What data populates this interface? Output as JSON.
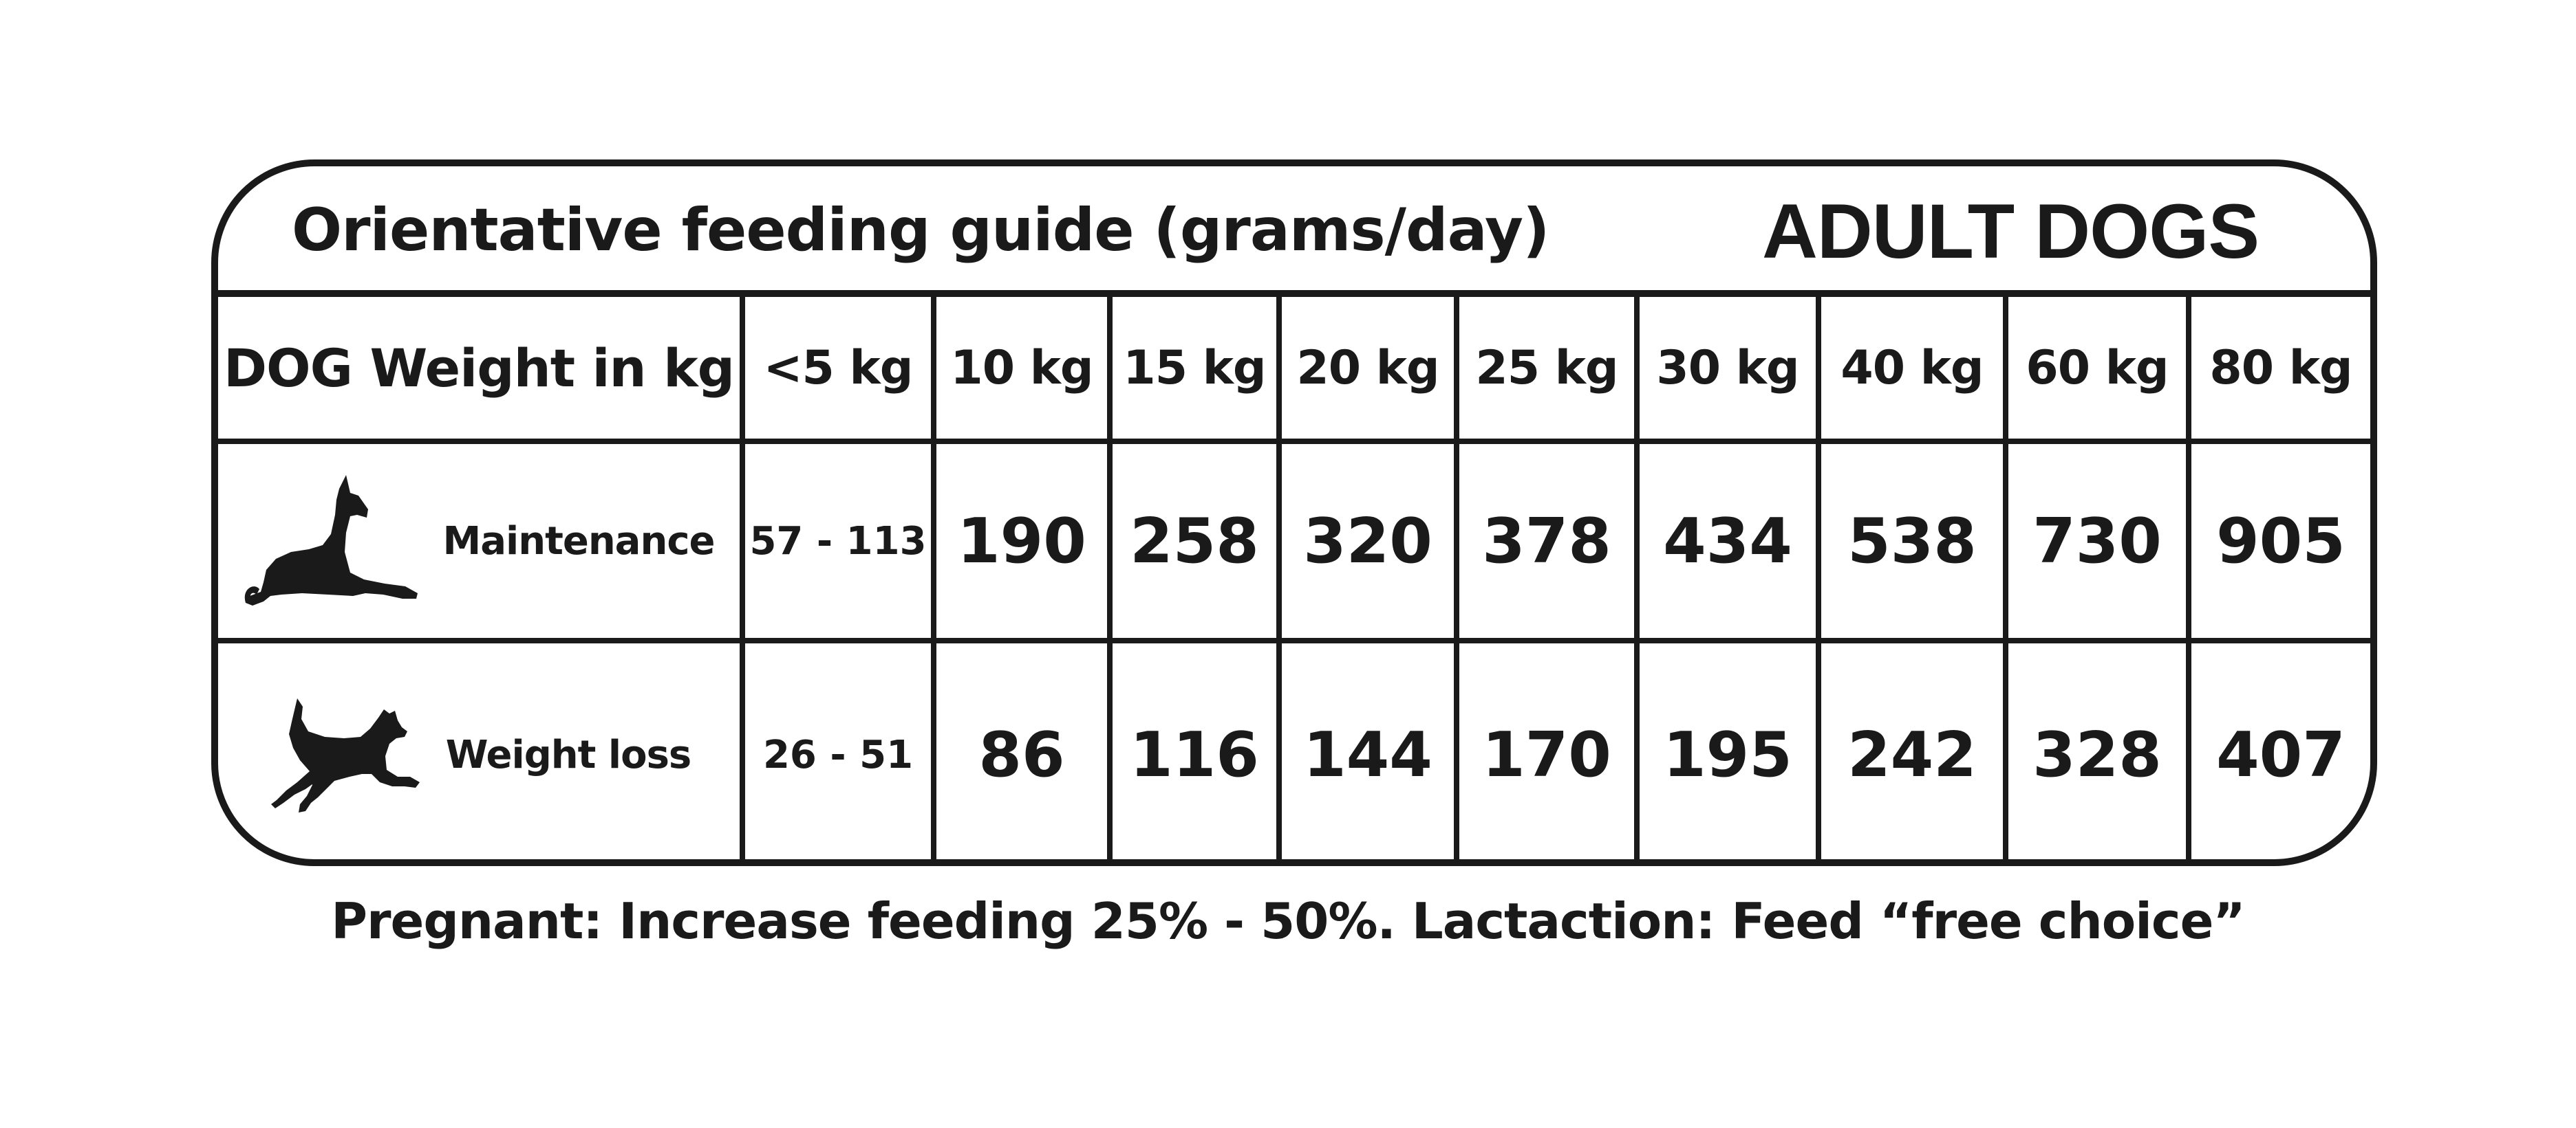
{
  "guide": {
    "title": "Orientative feeding guide (grams/day)",
    "section": "ADULT DOGS"
  },
  "table": {
    "weight_label": "DOG Weight in kg",
    "weights": [
      "<5 kg",
      "10 kg",
      "15 kg",
      "20 kg",
      "25 kg",
      "30 kg",
      "40 kg",
      "60 kg",
      "80 kg"
    ],
    "rows": [
      {
        "label": "Maintenance",
        "icon": "lying-dog-icon",
        "range": "57 - 113",
        "values": [
          "190",
          "258",
          "320",
          "378",
          "434",
          "538",
          "730",
          "905"
        ]
      },
      {
        "label": "Weight loss",
        "icon": "running-dog-icon",
        "range": "26 - 51",
        "values": [
          "86",
          "116",
          "144",
          "170",
          "195",
          "242",
          "328",
          "407"
        ]
      }
    ]
  },
  "footnote": "Pregnant: Increase feeding 25% - 50%. Lactaction: Feed “free choice”",
  "colors": {
    "ink": "#1a1a1a",
    "background": "#ffffff"
  }
}
